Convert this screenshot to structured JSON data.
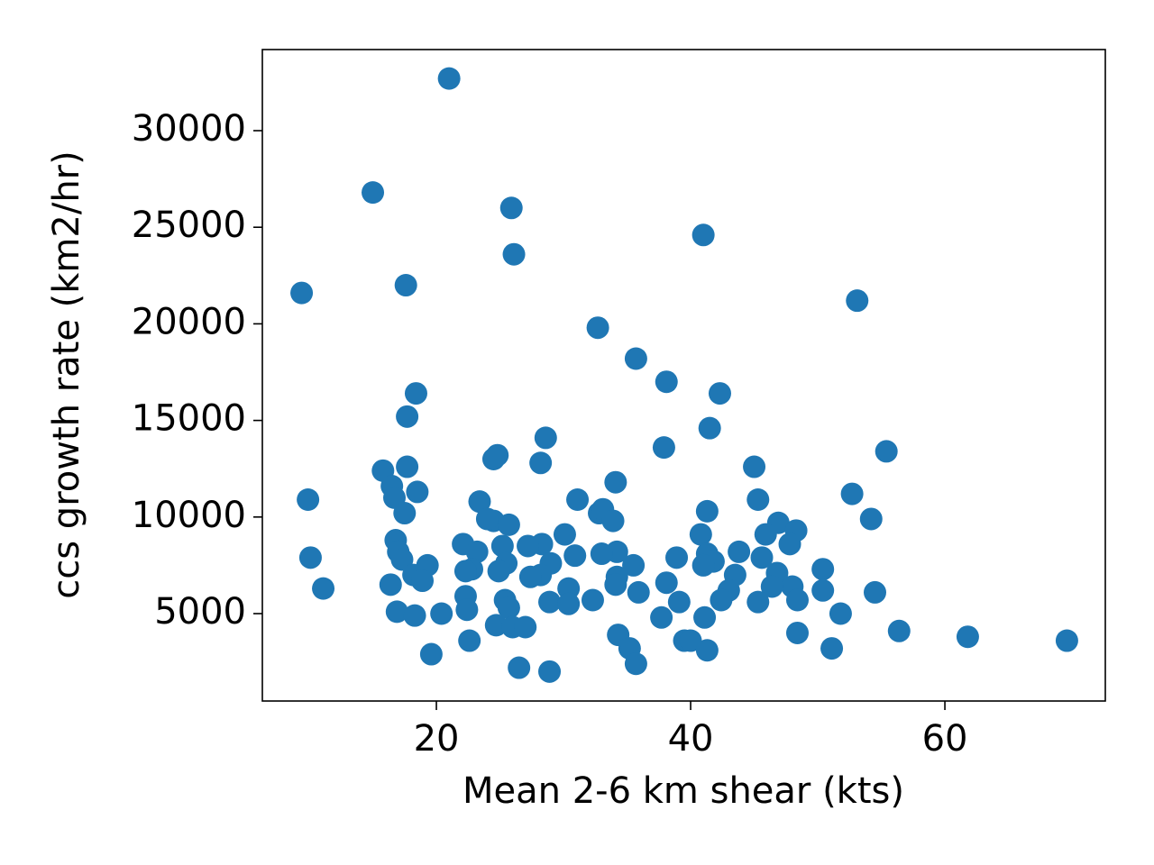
{
  "chart_data": {
    "type": "scatter",
    "x_label": "Mean 2-6 km shear (kts)",
    "y_label": "ccs growth rate (km2/hr)",
    "color": "#1f77b4",
    "x": [
      21.0,
      15.0,
      25.9,
      26.1,
      41.0,
      9.4,
      17.6,
      53.1,
      32.7,
      35.7,
      38.1,
      42.3,
      18.4,
      17.7,
      41.5,
      28.6,
      55.4,
      37.9,
      24.8,
      24.5,
      28.2,
      15.8,
      17.7,
      45.0,
      34.1,
      16.5,
      52.7,
      18.5,
      9.9,
      16.7,
      31.1,
      23.4,
      45.3,
      17.5,
      32.8,
      33.1,
      41.3,
      54.2,
      24.5,
      33.9,
      24.0,
      25.7,
      46.9,
      40.8,
      30.1,
      45.9,
      48.3,
      16.8,
      47.8,
      22.1,
      28.3,
      17.0,
      27.2,
      25.2,
      43.8,
      23.2,
      34.2,
      33.0,
      30.9,
      10.1,
      17.3,
      41.3,
      38.9,
      45.6,
      41.8,
      25.5,
      41.0,
      19.3,
      29.0,
      35.5,
      22.8,
      50.4,
      24.9,
      22.3,
      46.8,
      43.5,
      28.2,
      27.4,
      34.2,
      18.2,
      18.9,
      38.1,
      16.4,
      34.1,
      48.0,
      50.4,
      11.1,
      30.4,
      46.4,
      43.0,
      35.9,
      54.5,
      42.4,
      48.4,
      22.3,
      32.3,
      45.3,
      28.9,
      25.4,
      39.1,
      30.4,
      25.7,
      22.4,
      16.9,
      20.4,
      51.8,
      18.3,
      37.7,
      41.1,
      24.7,
      26.0,
      27.0,
      56.4,
      48.4,
      34.3,
      61.8,
      39.5,
      69.6,
      40.0,
      22.6,
      35.2,
      51.1,
      41.3,
      19.6,
      35.7,
      26.5,
      28.9
    ],
    "values": [
      32700,
      26800,
      26000,
      23600,
      24600,
      21600,
      22000,
      21200,
      19800,
      18200,
      17000,
      16400,
      16400,
      15200,
      14600,
      14100,
      13400,
      13600,
      13200,
      13000,
      12800,
      12400,
      12600,
      12600,
      11800,
      11600,
      11200,
      11300,
      10900,
      11000,
      10900,
      10800,
      10900,
      10200,
      10200,
      10400,
      10300,
      9900,
      9800,
      9800,
      9900,
      9600,
      9700,
      9100,
      9100,
      9100,
      9300,
      8800,
      8600,
      8600,
      8600,
      8200,
      8500,
      8500,
      8200,
      8200,
      8200,
      8100,
      8000,
      7900,
      7800,
      8100,
      7900,
      7900,
      7700,
      7600,
      7500,
      7500,
      7600,
      7500,
      7300,
      7300,
      7200,
      7200,
      7100,
      7000,
      7000,
      6900,
      6900,
      7000,
      6700,
      6600,
      6500,
      6500,
      6400,
      6200,
      6300,
      6300,
      6400,
      6200,
      6100,
      6100,
      5700,
      5700,
      5900,
      5700,
      5600,
      5600,
      5700,
      5600,
      5500,
      5300,
      5200,
      5100,
      5000,
      5000,
      4900,
      4800,
      4800,
      4400,
      4300,
      4300,
      4100,
      4000,
      3900,
      3800,
      3600,
      3600,
      3600,
      3600,
      3200,
      3200,
      3100,
      2900,
      2400,
      2200,
      2000
    ],
    "xlim": [
      6.31,
      72.62
    ],
    "ylim": [
      476,
      34198
    ],
    "xticks": [
      20,
      40,
      60
    ],
    "yticks": [
      5000,
      10000,
      15000,
      20000,
      25000,
      30000
    ]
  }
}
